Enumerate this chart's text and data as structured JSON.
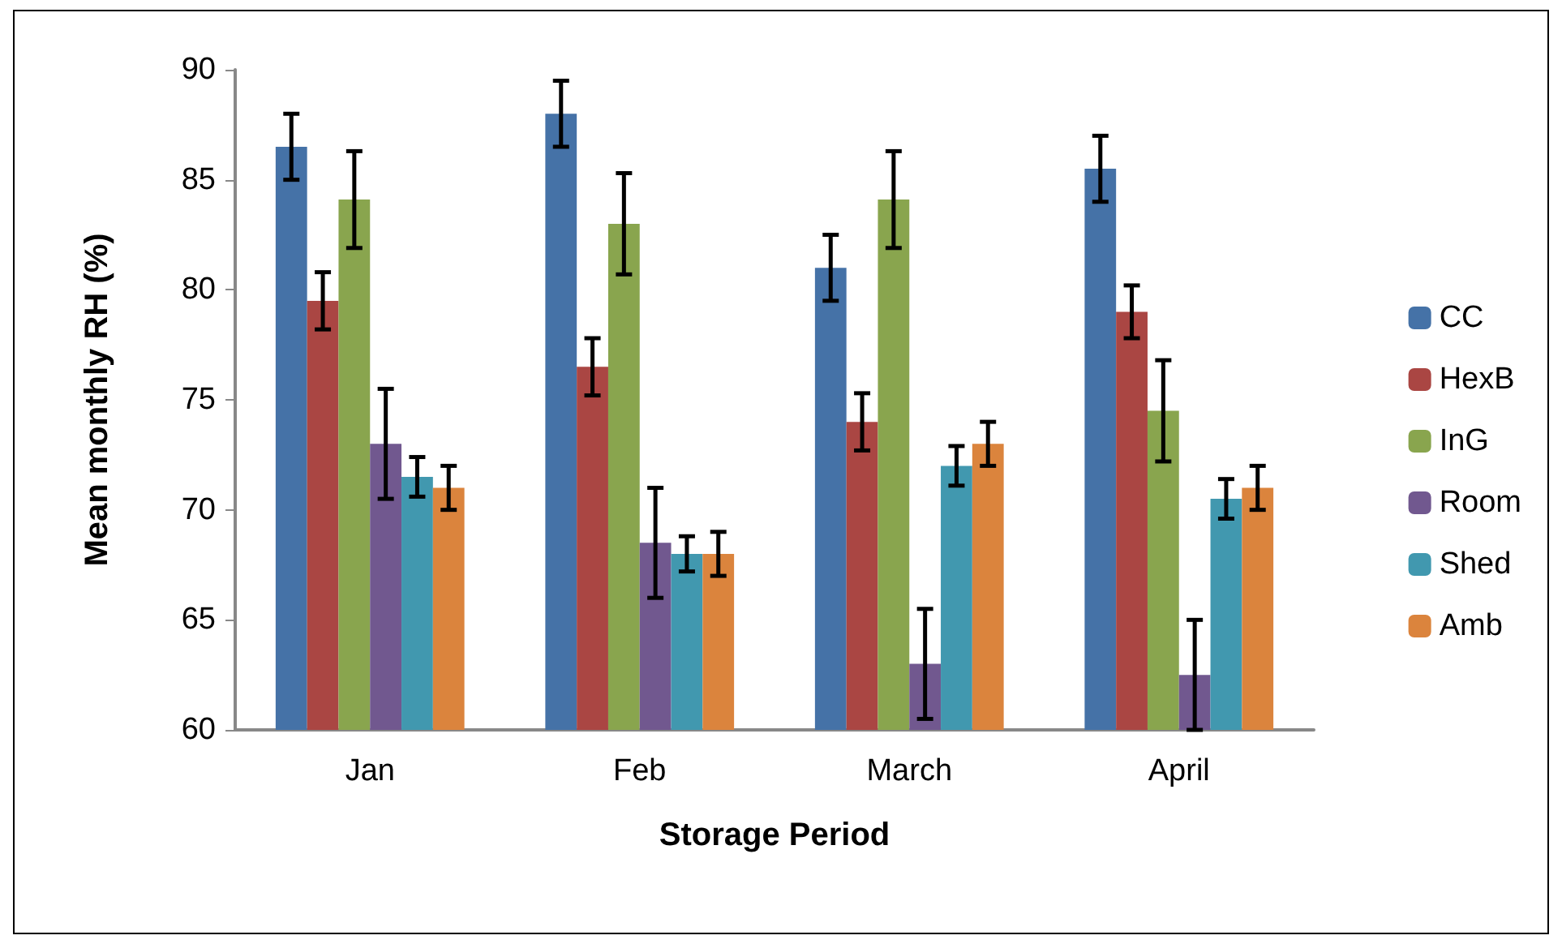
{
  "chart_data": {
    "type": "bar",
    "xlabel": "Storage Period",
    "ylabel": "Mean monthly RH (%)",
    "categories": [
      "Jan",
      "Feb",
      "March",
      "April"
    ],
    "series": [
      {
        "name": "CC",
        "color": "#4572a7",
        "values": [
          86.5,
          88,
          81,
          85.5
        ],
        "errors": [
          1.5,
          1.5,
          1.5,
          1.5
        ]
      },
      {
        "name": "HexB",
        "color": "#aa4643",
        "values": [
          79.5,
          76.5,
          74,
          79
        ],
        "errors": [
          1.3,
          1.3,
          1.3,
          1.2
        ]
      },
      {
        "name": "InG",
        "color": "#89a54e",
        "values": [
          84.1,
          83,
          84.1,
          74.5
        ],
        "errors": [
          2.2,
          2.3,
          2.2,
          2.3
        ]
      },
      {
        "name": "Room",
        "color": "#71588f",
        "values": [
          73,
          68.5,
          63,
          62.5
        ],
        "errors": [
          2.5,
          2.5,
          2.5,
          2.5
        ]
      },
      {
        "name": "Shed",
        "color": "#4198af",
        "values": [
          71.5,
          68,
          72,
          70.5
        ],
        "errors": [
          0.9,
          0.8,
          0.9,
          0.9
        ]
      },
      {
        "name": "Amb",
        "color": "#db843d",
        "values": [
          71,
          68,
          73,
          71
        ],
        "errors": [
          1,
          1,
          1,
          1
        ]
      }
    ],
    "ylim": [
      60,
      90
    ],
    "yticks": [
      60,
      65,
      70,
      75,
      80,
      85,
      90
    ],
    "grid": false,
    "legend": "right"
  }
}
